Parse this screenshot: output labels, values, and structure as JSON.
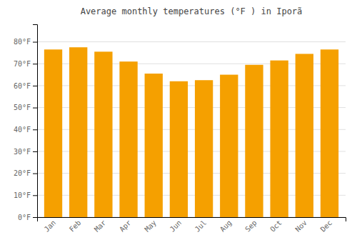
{
  "chart_data": {
    "type": "bar",
    "title": "Average monthly temperatures (°F ) in Iporã",
    "categories": [
      "Jan",
      "Feb",
      "Mar",
      "Apr",
      "May",
      "Jun",
      "Jul",
      "Aug",
      "Sep",
      "Oct",
      "Nov",
      "Dec"
    ],
    "values": [
      76.5,
      77.5,
      75.5,
      71.0,
      65.5,
      62.0,
      62.5,
      65.0,
      69.5,
      71.5,
      74.5,
      76.5
    ],
    "color": "#F5A000",
    "ylim": [
      0,
      88
    ],
    "yticks": [
      {
        "value": 0,
        "label": "0°F"
      },
      {
        "value": 10,
        "label": "10°F"
      },
      {
        "value": 20,
        "label": "20°F"
      },
      {
        "value": 30,
        "label": "30°F"
      },
      {
        "value": 40,
        "label": "40°F"
      },
      {
        "value": 50,
        "label": "50°F"
      },
      {
        "value": 60,
        "label": "60°F"
      },
      {
        "value": 70,
        "label": "70°F"
      },
      {
        "value": 80,
        "label": "80°F"
      }
    ],
    "grid": true
  }
}
